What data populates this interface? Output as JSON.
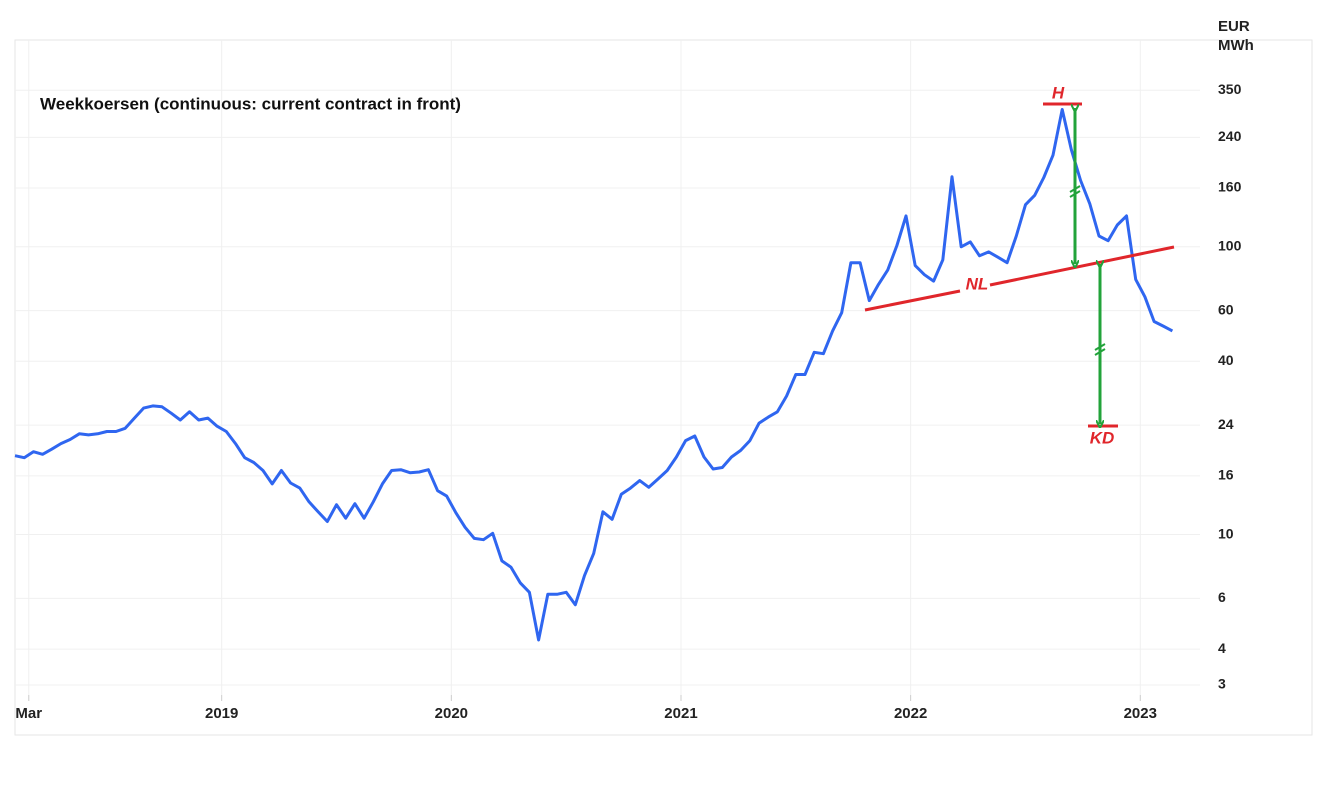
{
  "chart_data": {
    "type": "line",
    "title": "Weekkoersen (continuous: current contract in front)",
    "y_unit": [
      "EUR",
      "MWh"
    ],
    "log_scale_y": true,
    "grid": true,
    "xlim": [
      2018.1,
      2023.26
    ],
    "xticks": [
      {
        "value": 2018.16,
        "label": "Mar"
      },
      2019,
      2020,
      2021,
      2022,
      2023
    ],
    "ylim": [
      2.77,
      523
    ],
    "yticks": [
      350,
      240,
      160,
      100,
      60,
      40,
      24,
      16,
      10,
      6,
      4,
      3
    ],
    "x": [
      2018.1,
      2018.14,
      2018.18,
      2018.22,
      2018.26,
      2018.3,
      2018.34,
      2018.38,
      2018.42,
      2018.46,
      2018.5,
      2018.54,
      2018.58,
      2018.62,
      2018.66,
      2018.7,
      2018.74,
      2018.78,
      2018.82,
      2018.86,
      2018.9,
      2018.94,
      2018.98,
      2019.02,
      2019.06,
      2019.1,
      2019.14,
      2019.18,
      2019.22,
      2019.26,
      2019.3,
      2019.34,
      2019.38,
      2019.42,
      2019.46,
      2019.5,
      2019.54,
      2019.58,
      2019.62,
      2019.66,
      2019.7,
      2019.74,
      2019.78,
      2019.82,
      2019.86,
      2019.9,
      2019.94,
      2019.98,
      2020.02,
      2020.06,
      2020.1,
      2020.14,
      2020.18,
      2020.22,
      2020.26,
      2020.3,
      2020.34,
      2020.38,
      2020.42,
      2020.46,
      2020.5,
      2020.54,
      2020.58,
      2020.62,
      2020.66,
      2020.7,
      2020.74,
      2020.78,
      2020.82,
      2020.86,
      2020.9,
      2020.94,
      2020.98,
      2021.02,
      2021.06,
      2021.1,
      2021.14,
      2021.18,
      2021.22,
      2021.26,
      2021.3,
      2021.34,
      2021.38,
      2021.42,
      2021.46,
      2021.5,
      2021.54,
      2021.58,
      2021.62,
      2021.66,
      2021.7,
      2021.74,
      2021.78,
      2021.82,
      2021.86,
      2021.9,
      2021.94,
      2021.98,
      2022.02,
      2022.06,
      2022.1,
      2022.14,
      2022.18,
      2022.22,
      2022.26,
      2022.3,
      2022.34,
      2022.38,
      2022.42,
      2022.46,
      2022.5,
      2022.54,
      2022.58,
      2022.62,
      2022.66,
      2022.7,
      2022.74,
      2022.78,
      2022.82,
      2022.86,
      2022.9,
      2022.94,
      2022.98,
      2023.02,
      2023.06,
      2023.1,
      2023.14
    ],
    "series": [
      {
        "name": "Weekkoersen",
        "color": "#2f66f0",
        "values": [
          18.8,
          18.5,
          19.4,
          19.0,
          19.8,
          20.7,
          21.4,
          22.4,
          22.2,
          22.4,
          22.8,
          22.8,
          23.4,
          25.4,
          27.5,
          28.0,
          27.8,
          26.4,
          25.0,
          26.7,
          25.0,
          25.4,
          23.8,
          22.8,
          20.7,
          18.5,
          17.8,
          16.7,
          15.0,
          16.7,
          15.1,
          14.5,
          13.0,
          12.0,
          11.1,
          12.7,
          11.4,
          12.8,
          11.4,
          13.0,
          15.0,
          16.7,
          16.8,
          16.4,
          16.5,
          16.8,
          14.2,
          13.6,
          11.9,
          10.6,
          9.7,
          9.6,
          10.1,
          8.1,
          7.7,
          6.8,
          6.3,
          4.3,
          6.2,
          6.2,
          6.3,
          5.7,
          7.2,
          8.6,
          12.0,
          11.3,
          13.8,
          14.5,
          15.4,
          14.6,
          15.6,
          16.7,
          18.6,
          21.2,
          22.0,
          18.6,
          16.9,
          17.1,
          18.6,
          19.6,
          21.2,
          24.4,
          25.6,
          26.7,
          30.3,
          36,
          36,
          43,
          42.5,
          51,
          59,
          88,
          88,
          65,
          74,
          83,
          101,
          128,
          86,
          80,
          76,
          90,
          175,
          100,
          104,
          93,
          96,
          92,
          88,
          109,
          140,
          151,
          174,
          208,
          300,
          217,
          170,
          141,
          109,
          105,
          119,
          128,
          77,
          67,
          55,
          53,
          51
        ]
      }
    ],
    "annotations": {
      "head": "H",
      "neckline": "NL",
      "target": "KD"
    }
  }
}
